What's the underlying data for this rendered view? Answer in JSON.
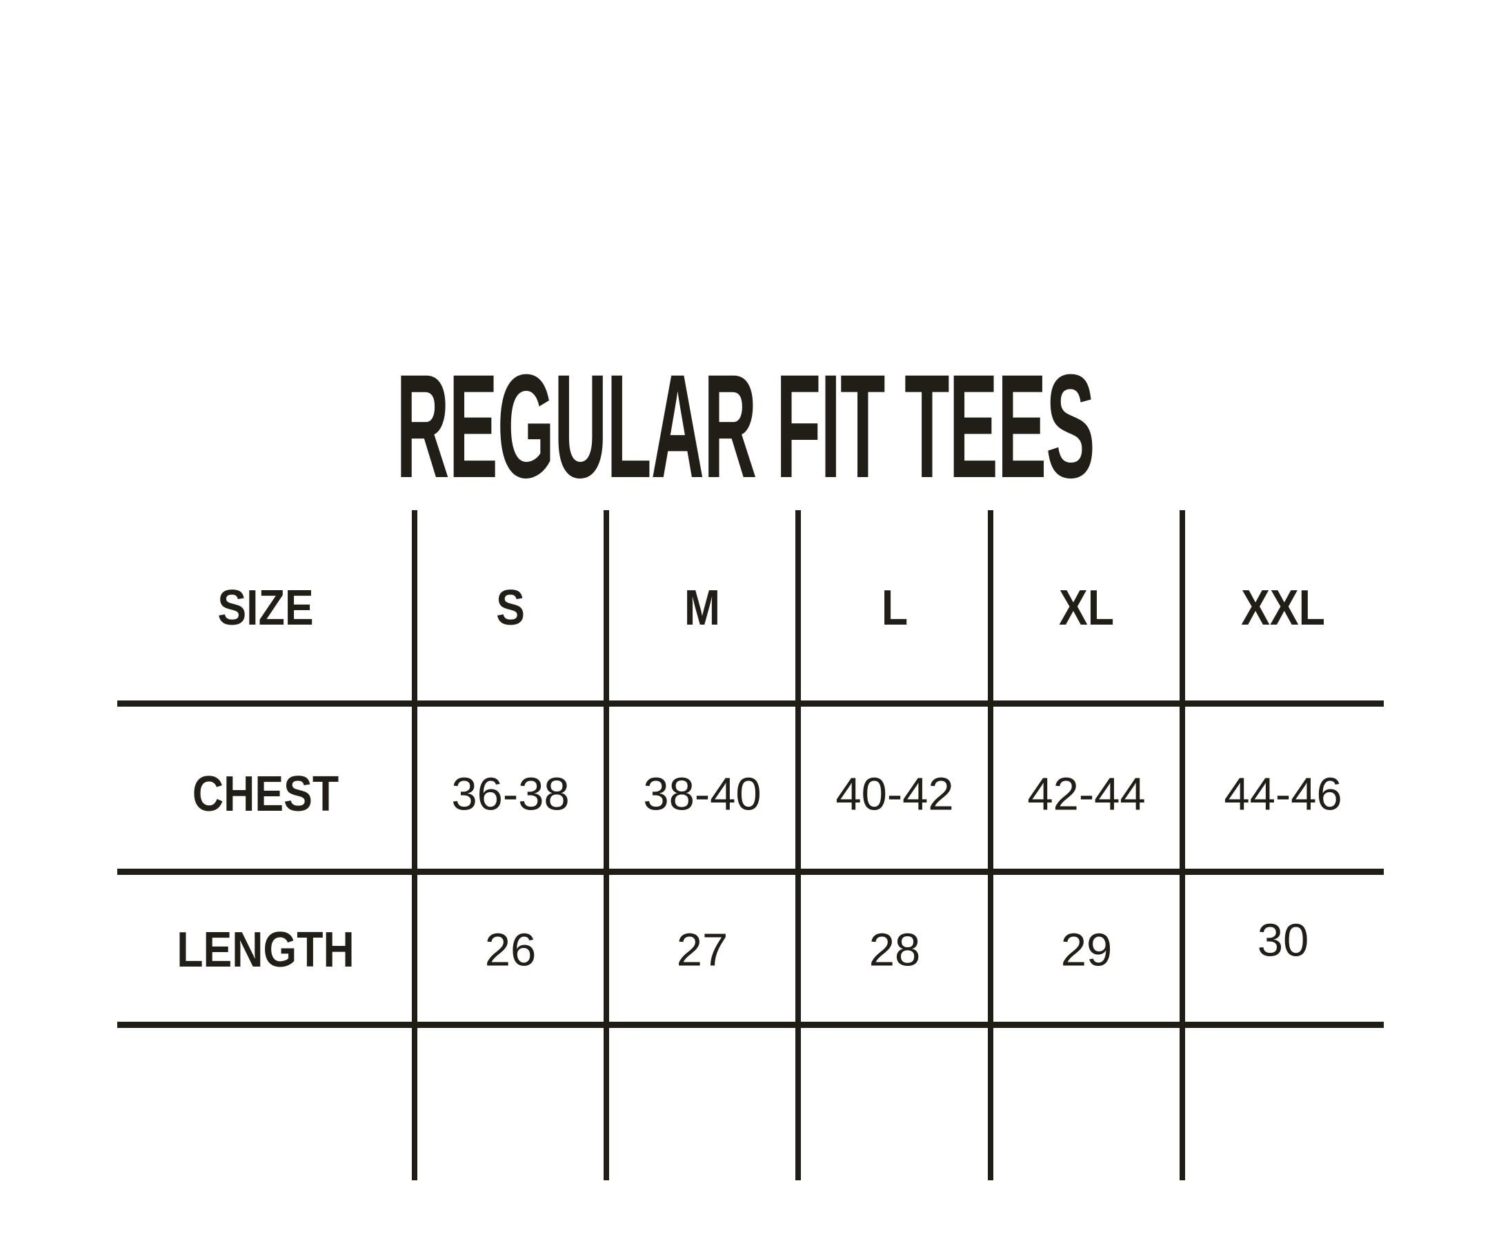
{
  "page": {
    "background_color": "#ffffff",
    "ink_color": "#211e18"
  },
  "chart_data": {
    "type": "table",
    "title": "REGULAR FIT TEES",
    "columns": [
      "SIZE",
      "S",
      "M",
      "L",
      "XL",
      "XXL"
    ],
    "rows": [
      {
        "label": "CHEST",
        "values": [
          "36-38",
          "38-40",
          "40-42",
          "42-44",
          "44-46"
        ]
      },
      {
        "label": "LENGTH",
        "values": [
          "26",
          "27",
          "28",
          "29",
          "30"
        ]
      }
    ],
    "grid": "open-outer-edges",
    "legend_position": "none"
  }
}
